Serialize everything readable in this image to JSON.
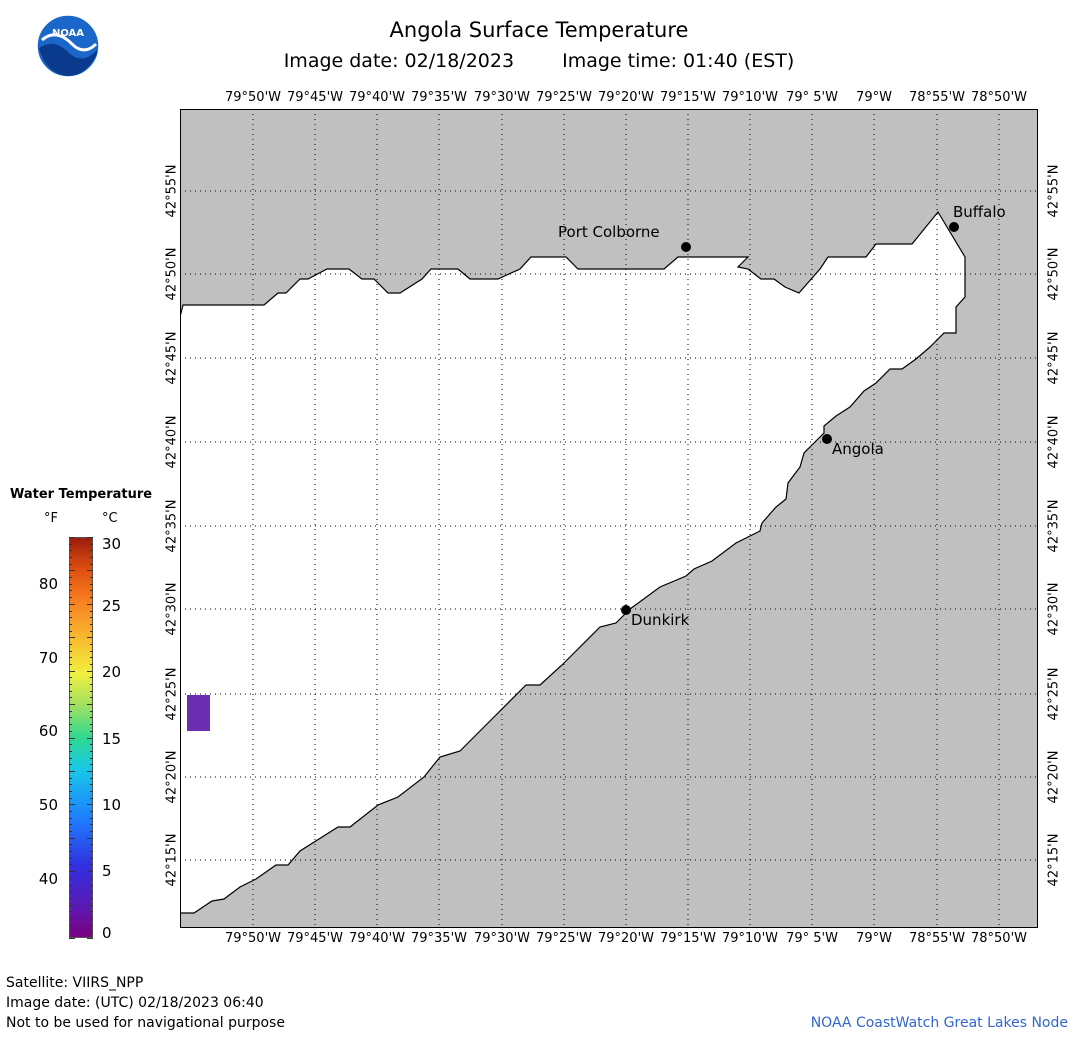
{
  "header": {
    "title": "Angola Surface Temperature",
    "image_date_label": "Image date: 02/18/2023",
    "image_time_label": "Image time: 01:40 (EST)"
  },
  "logo": {
    "text": "NOAA"
  },
  "map": {
    "lon_labels": [
      "79°50'W",
      "79°45'W",
      "79°40'W",
      "79°35'W",
      "79°30'W",
      "79°25'W",
      "79°20'W",
      "79°15'W",
      "79°10'W",
      "79° 5'W",
      "79°W",
      "78°55'W",
      "78°50'W"
    ],
    "lat_labels": [
      "42°55'N",
      "42°50'N",
      "42°45'N",
      "42°40'N",
      "42°35'N",
      "42°30'N",
      "42°25'N",
      "42°20'N",
      "42°15'N"
    ],
    "cities": [
      {
        "name": "Buffalo"
      },
      {
        "name": "Port Colborne"
      },
      {
        "name": "Angola"
      },
      {
        "name": "Dunkirk"
      }
    ],
    "colors": {
      "land": "#c0c0c0",
      "water": "#ffffff",
      "data_pixel": "#6a2eb0"
    }
  },
  "legend": {
    "title": "Water Temperature",
    "unit_f": "°F",
    "unit_c": "°C",
    "f_ticks": [
      "80",
      "70",
      "60",
      "50",
      "40"
    ],
    "c_ticks": [
      "30",
      "25",
      "20",
      "15",
      "10",
      "5",
      "0"
    ]
  },
  "footer": {
    "satellite": "Satellite: VIIRS_NPP",
    "utc_date": "Image date: (UTC) 02/18/2023  06:40",
    "disclaimer": "Not to be used for navigational purpose",
    "credit": "NOAA CoastWatch Great Lakes Node"
  }
}
